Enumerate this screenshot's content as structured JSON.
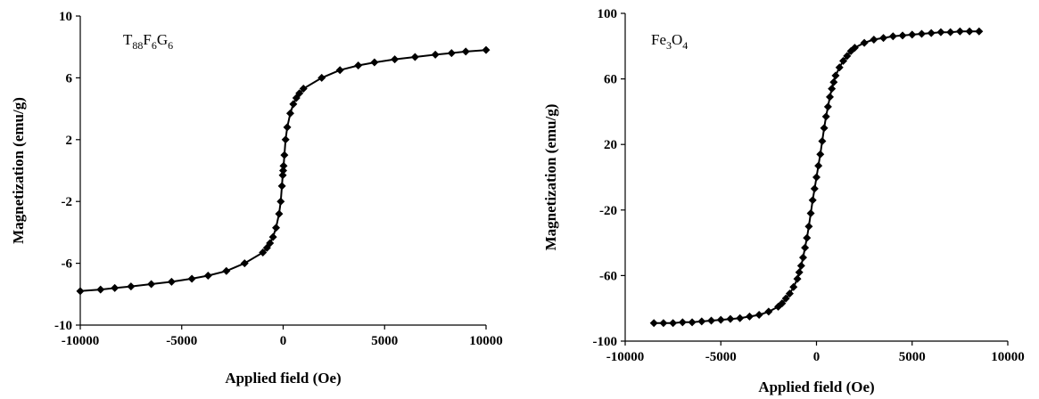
{
  "chart_data": [
    {
      "type": "scatter",
      "label_parts": [
        "T",
        "88",
        "F",
        "6",
        "G",
        "6"
      ],
      "xlabel": "Applied field (Oe)",
      "ylabel": "Magnetization (emu/g)",
      "xlim": [
        -10000,
        10000
      ],
      "ylim": [
        -10,
        10
      ],
      "xticks": [
        -10000,
        -5000,
        0,
        5000,
        10000
      ],
      "yticks": [
        -10,
        -6,
        -2,
        2,
        6,
        10
      ],
      "xtick_labels": [
        "-10000",
        "-5000",
        "0",
        "5000",
        "10000"
      ],
      "ytick_labels": [
        "-10",
        "-6",
        "-2",
        "2",
        "6",
        "10"
      ],
      "grid": false,
      "series": [
        {
          "color": "#000000",
          "marker": "diamond",
          "x": [
            -10000,
            -9000,
            -8300,
            -7500,
            -6500,
            -5500,
            -4500,
            -3700,
            -2800,
            -1900,
            -1000,
            -800,
            -650,
            -500,
            -350,
            -200,
            -120,
            -60,
            -20,
            0,
            20,
            60,
            120,
            200,
            350,
            500,
            650,
            800,
            1000,
            1900,
            2800,
            3700,
            4500,
            5500,
            6500,
            7500,
            8300,
            9000,
            10000
          ],
          "y": [
            -7.8,
            -7.7,
            -7.6,
            -7.5,
            -7.35,
            -7.2,
            -7.0,
            -6.8,
            -6.5,
            -6.0,
            -5.3,
            -5.0,
            -4.7,
            -4.3,
            -3.7,
            -2.8,
            -2.0,
            -1.0,
            -0.3,
            0.0,
            0.3,
            1.0,
            2.0,
            2.8,
            3.7,
            4.3,
            4.7,
            5.0,
            5.3,
            6.0,
            6.5,
            6.8,
            7.0,
            7.2,
            7.35,
            7.5,
            7.6,
            7.7,
            7.8
          ]
        }
      ]
    },
    {
      "type": "scatter",
      "label_parts": [
        "Fe",
        "3",
        "O",
        "4"
      ],
      "xlabel": "Applied field (Oe)",
      "ylabel": "Magnetization (emu/g)",
      "xlim": [
        -10000,
        10000
      ],
      "ylim": [
        -100,
        100
      ],
      "xticks": [
        -10000,
        -5000,
        0,
        5000,
        10000
      ],
      "yticks": [
        -100,
        -60,
        -20,
        20,
        60,
        100
      ],
      "xtick_labels": [
        "-10000",
        "-5000",
        "0",
        "5000",
        "10000"
      ],
      "ytick_labels": [
        "-100",
        "-60",
        "-20",
        "20",
        "60",
        "100"
      ],
      "grid": false,
      "series": [
        {
          "color": "#000000",
          "marker": "diamond",
          "x": [
            -8500,
            -8000,
            -7500,
            -7000,
            -6500,
            -6000,
            -5500,
            -5000,
            -4500,
            -4000,
            -3500,
            -3000,
            -2500,
            -2000,
            -1800,
            -1600,
            -1400,
            -1200,
            -1000,
            -900,
            -800,
            -700,
            -600,
            -500,
            -400,
            -300,
            -200,
            -100,
            0,
            100,
            200,
            300,
            400,
            500,
            600,
            700,
            800,
            900,
            1000,
            1200,
            1400,
            1600,
            1800,
            2000,
            2500,
            3000,
            3500,
            4000,
            4500,
            5000,
            5500,
            6000,
            6500,
            7000,
            7500,
            8000,
            8500
          ],
          "y": [
            -89,
            -89,
            -89,
            -88.5,
            -88.5,
            -88,
            -87.5,
            -87,
            -86.5,
            -86,
            -85,
            -84,
            -82,
            -79,
            -77,
            -74,
            -71,
            -67,
            -62,
            -58,
            -54,
            -49,
            -43,
            -37,
            -30,
            -22,
            -14,
            -7,
            0,
            7,
            14,
            22,
            30,
            37,
            43,
            49,
            54,
            58,
            62,
            67,
            71,
            74,
            77,
            79,
            82,
            84,
            85,
            86,
            86.5,
            87,
            87.5,
            88,
            88.5,
            88.5,
            89,
            89,
            89
          ]
        }
      ]
    }
  ]
}
